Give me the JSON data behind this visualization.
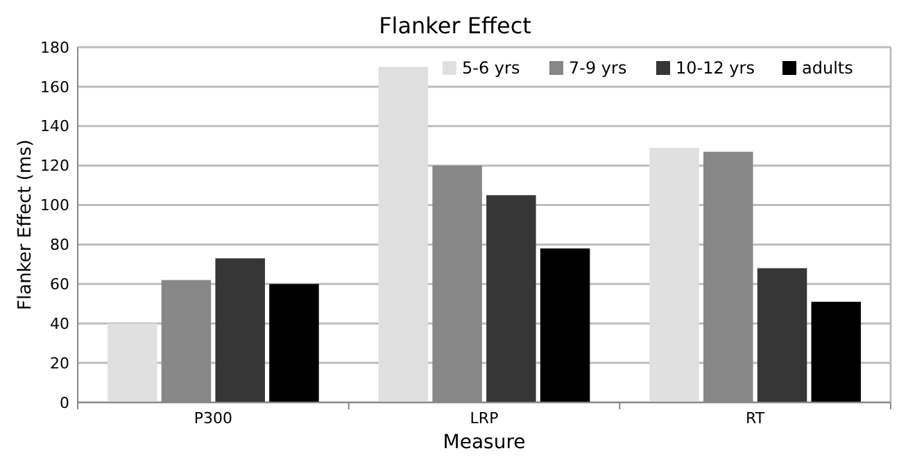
{
  "chart_data": {
    "type": "bar",
    "title": "Flanker Effect",
    "xlabel": "Measure",
    "ylabel": "Flanker Effect (ms)",
    "categories": [
      "P300",
      "LRP",
      "RT"
    ],
    "series": [
      {
        "name": "5-6 yrs",
        "color": "#e0e0e0",
        "values": [
          40,
          170,
          129
        ]
      },
      {
        "name": "7-9 yrs",
        "color": "#878787",
        "values": [
          62,
          120,
          127
        ]
      },
      {
        "name": "10-12 yrs",
        "color": "#363636",
        "values": [
          73,
          105,
          68
        ]
      },
      {
        "name": "adults",
        "color": "#000000",
        "values": [
          60,
          78,
          51
        ]
      }
    ],
    "ylim": [
      0,
      180
    ],
    "yticks": [
      0,
      20,
      40,
      60,
      80,
      100,
      120,
      140,
      160,
      180
    ],
    "grid": "y",
    "legend": "top right"
  }
}
